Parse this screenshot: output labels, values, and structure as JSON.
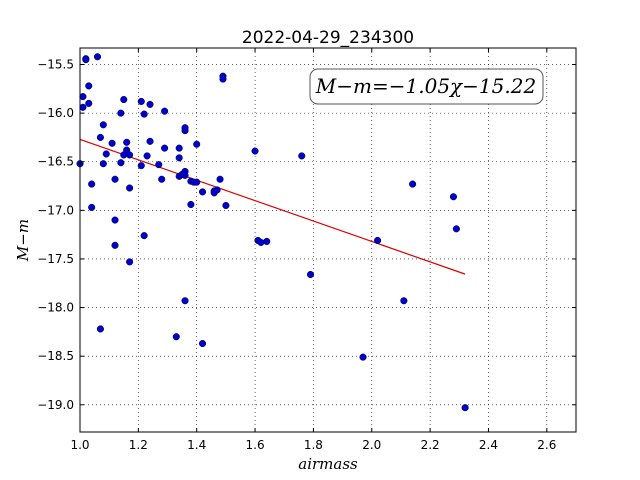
{
  "chart_data": {
    "type": "scatter",
    "title": "2022-04-29_234300",
    "xlabel": "airmass",
    "ylabel": "M−m",
    "xlim": [
      1.0,
      2.7
    ],
    "ylim": [
      -19.28,
      -15.33
    ],
    "xticks": [
      1.0,
      1.2,
      1.4,
      1.6,
      1.8,
      2.0,
      2.2,
      2.4,
      2.6
    ],
    "xtick_labels": [
      "1.0",
      "1.2",
      "1.4",
      "1.6",
      "1.8",
      "2.0",
      "2.2",
      "2.4",
      "2.6"
    ],
    "yticks": [
      -15.5,
      -16.0,
      -16.5,
      -17.0,
      -17.5,
      -18.0,
      -18.5,
      -19.0
    ],
    "ytick_labels": [
      "−15.5",
      "−16.0",
      "−16.5",
      "−17.0",
      "−17.5",
      "−18.0",
      "−18.5",
      "−19.0"
    ],
    "grid": true,
    "annotation": "M−m=−1.05χ−15.22",
    "point_color": "#0000cc",
    "fit_color": "#e00000",
    "fit": {
      "slope": -1.05,
      "intercept": -15.22,
      "x_range": [
        1.0,
        2.32
      ]
    },
    "points": [
      [
        1.0,
        -16.52
      ],
      [
        1.01,
        -15.83
      ],
      [
        1.01,
        -15.94
      ],
      [
        1.02,
        -15.44
      ],
      [
        1.02,
        -15.45
      ],
      [
        1.03,
        -15.9
      ],
      [
        1.03,
        -15.72
      ],
      [
        1.04,
        -16.97
      ],
      [
        1.04,
        -16.73
      ],
      [
        1.06,
        -15.42
      ],
      [
        1.07,
        -16.25
      ],
      [
        1.07,
        -18.22
      ],
      [
        1.08,
        -16.12
      ],
      [
        1.08,
        -16.52
      ],
      [
        1.09,
        -16.42
      ],
      [
        1.11,
        -16.31
      ],
      [
        1.12,
        -16.68
      ],
      [
        1.12,
        -17.1
      ],
      [
        1.12,
        -17.36
      ],
      [
        1.14,
        -16.0
      ],
      [
        1.14,
        -16.51
      ],
      [
        1.15,
        -15.86
      ],
      [
        1.15,
        -16.43
      ],
      [
        1.16,
        -16.38
      ],
      [
        1.16,
        -16.3
      ],
      [
        1.17,
        -16.43
      ],
      [
        1.17,
        -16.77
      ],
      [
        1.17,
        -17.53
      ],
      [
        1.21,
        -15.88
      ],
      [
        1.21,
        -16.54
      ],
      [
        1.22,
        -16.01
      ],
      [
        1.22,
        -17.26
      ],
      [
        1.23,
        -16.44
      ],
      [
        1.24,
        -16.29
      ],
      [
        1.24,
        -15.91
      ],
      [
        1.27,
        -16.53
      ],
      [
        1.28,
        -16.68
      ],
      [
        1.29,
        -15.98
      ],
      [
        1.29,
        -16.36
      ],
      [
        1.33,
        -18.3
      ],
      [
        1.34,
        -16.36
      ],
      [
        1.34,
        -16.46
      ],
      [
        1.34,
        -16.65
      ],
      [
        1.35,
        -16.63
      ],
      [
        1.36,
        -16.18
      ],
      [
        1.36,
        -16.15
      ],
      [
        1.36,
        -16.6
      ],
      [
        1.36,
        -16.64
      ],
      [
        1.36,
        -17.93
      ],
      [
        1.38,
        -16.94
      ],
      [
        1.38,
        -16.7
      ],
      [
        1.39,
        -16.71
      ],
      [
        1.4,
        -16.71
      ],
      [
        1.4,
        -16.32
      ],
      [
        1.42,
        -16.81
      ],
      [
        1.42,
        -18.37
      ],
      [
        1.46,
        -16.8
      ],
      [
        1.46,
        -16.82
      ],
      [
        1.47,
        -16.79
      ],
      [
        1.48,
        -16.68
      ],
      [
        1.49,
        -15.62
      ],
      [
        1.49,
        -15.65
      ],
      [
        1.5,
        -16.95
      ],
      [
        1.6,
        -16.39
      ],
      [
        1.61,
        -17.31
      ],
      [
        1.62,
        -17.33
      ],
      [
        1.64,
        -17.32
      ],
      [
        1.76,
        -16.44
      ],
      [
        1.79,
        -17.66
      ],
      [
        1.97,
        -18.51
      ],
      [
        2.02,
        -17.31
      ],
      [
        2.11,
        -17.93
      ],
      [
        2.14,
        -16.73
      ],
      [
        2.28,
        -16.86
      ],
      [
        2.29,
        -17.19
      ],
      [
        2.32,
        -19.03
      ]
    ]
  }
}
